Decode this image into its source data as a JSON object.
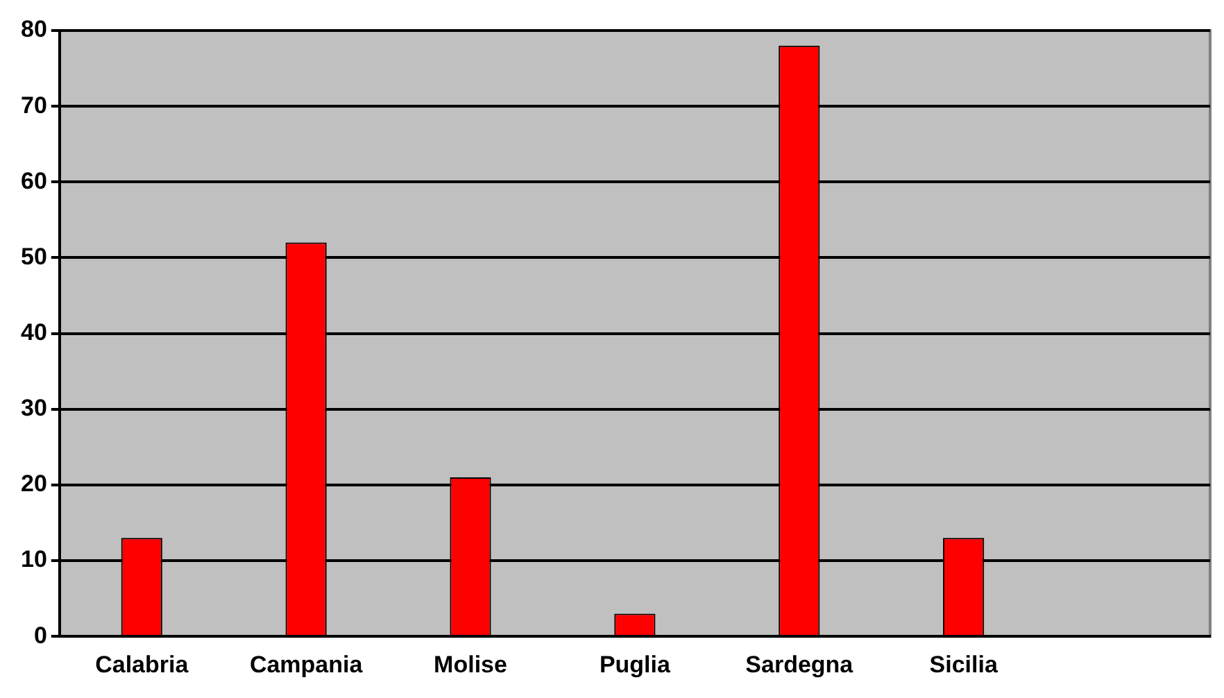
{
  "chart_data": {
    "type": "bar",
    "categories": [
      "Calabria",
      "Campania",
      "Molise",
      "Puglia",
      "Sardegna",
      "Sicilia",
      null
    ],
    "values": [
      13,
      52,
      21,
      3,
      78,
      13,
      null
    ],
    "color": "#ff0000",
    "ylim": [
      0,
      80
    ],
    "yticks": [
      0,
      10,
      20,
      30,
      40,
      50,
      60,
      70,
      80
    ],
    "grid": "y"
  }
}
